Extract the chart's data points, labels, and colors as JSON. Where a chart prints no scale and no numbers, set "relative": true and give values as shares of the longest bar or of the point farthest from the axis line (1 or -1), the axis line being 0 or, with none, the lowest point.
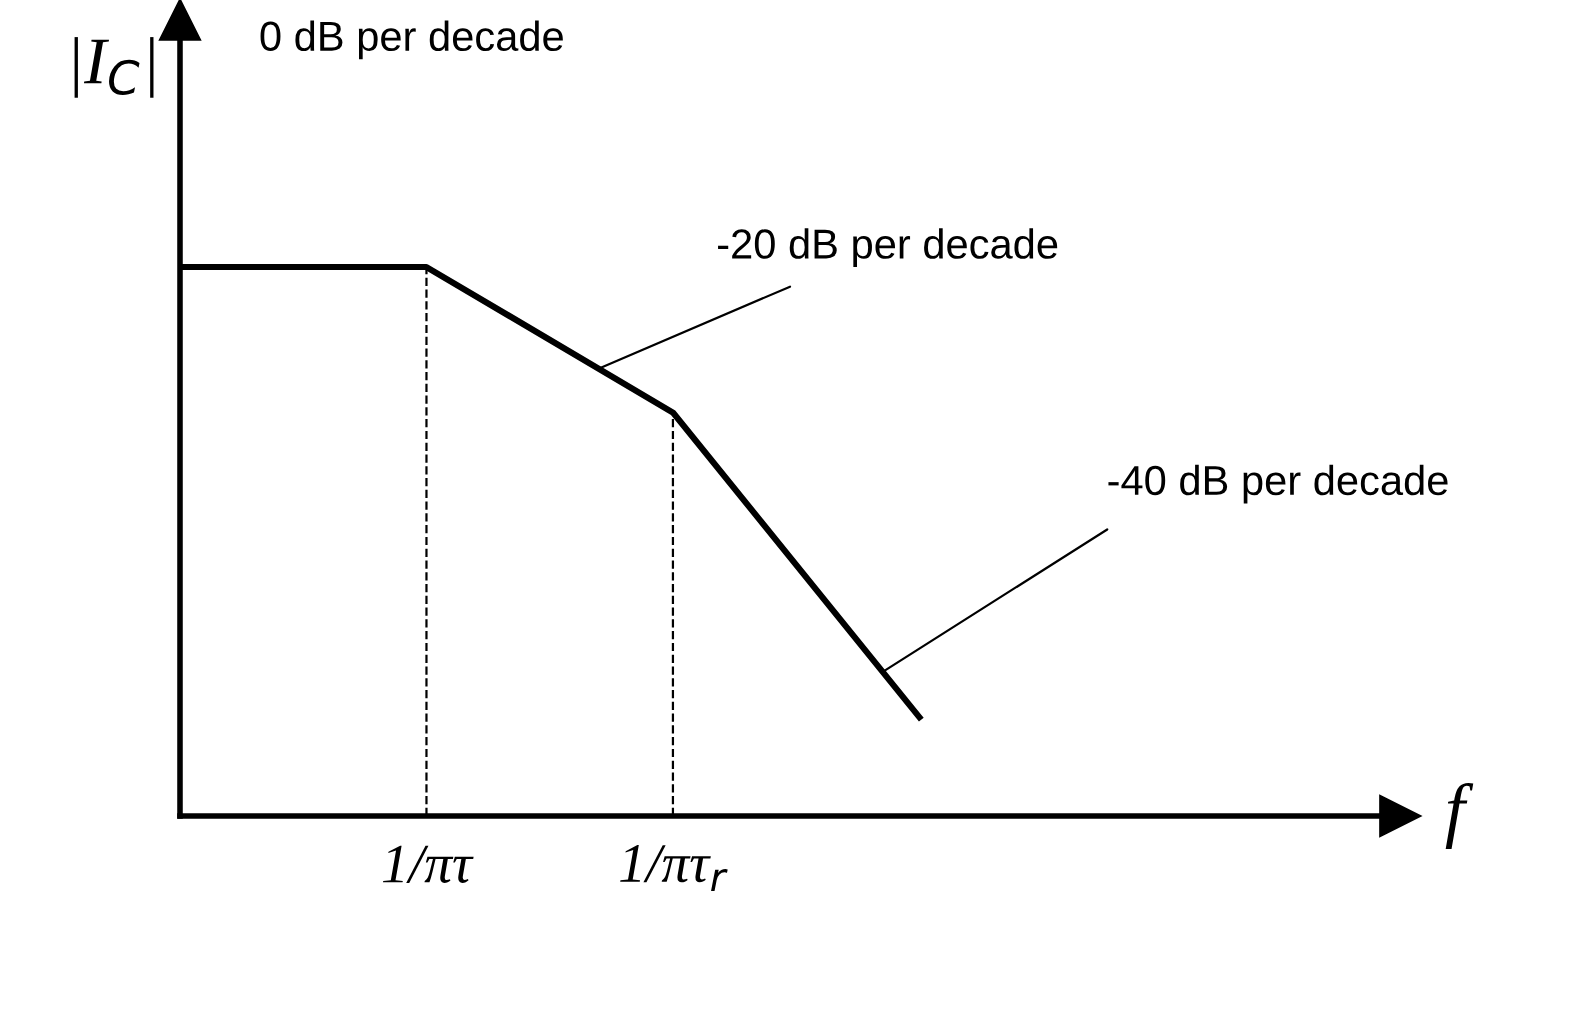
{
  "chart_data": {
    "type": "line",
    "relative": true,
    "ylabel": "|I$_{C}$|",
    "categories": [
      null,
      "1/πτ",
      "1/πτ$_{r}$",
      null
    ],
    "series": [
      {
        "color": "#000000",
        "values": [
          1,
          1,
          0.735,
          0.18
        ]
      }
    ],
    "ref_lines": [
      {
        "axis": "x",
        "value": "1/πτ",
        "color": "#000000",
        "line_style": "dashed"
      },
      {
        "axis": "x",
        "value": "1/πτ$_{r}$",
        "color": "#000000",
        "line_style": "dashed"
      }
    ],
    "annotations": [
      "0 dB per decade",
      "-20 dB per decade",
      "-40 dB per decade",
      "f"
    ],
    "grid": false,
    "legend": false,
    "marker": "none",
    "line_style": "solid"
  }
}
